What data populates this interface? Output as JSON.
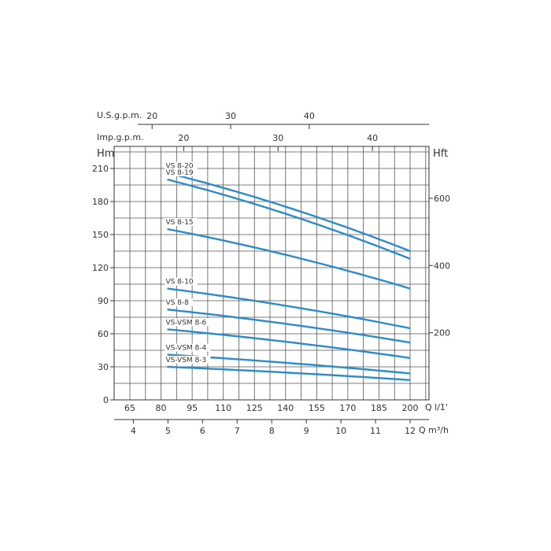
{
  "chart_data": {
    "type": "line",
    "x": [
      83,
      200
    ],
    "x_ticks": [
      65,
      80,
      95,
      110,
      125,
      140,
      155,
      170,
      185,
      200
    ],
    "x_unit": "Q l/1'",
    "x2_ticks": [
      4,
      5,
      6,
      7,
      8,
      9,
      10,
      11,
      12
    ],
    "x2_unit": "Q m³/h",
    "top_axis_1": {
      "label": "U.S.g.p.m.",
      "ticks": [
        20,
        30,
        40
      ]
    },
    "top_axis_2": {
      "label": "Imp.g.p.m.",
      "ticks": [
        20,
        30,
        40
      ]
    },
    "ylabel": "Hm",
    "ylim": [
      0,
      230
    ],
    "y_ticks": [
      0,
      30,
      60,
      90,
      120,
      150,
      180,
      210
    ],
    "y2label": "Hft",
    "y2_ticks": [
      200,
      400,
      600
    ],
    "grid": true,
    "series": [
      {
        "name": "VS 8-20",
        "values": [
          206,
          135
        ]
      },
      {
        "name": "VS 8-19",
        "values": [
          200,
          128
        ]
      },
      {
        "name": "VS 8-15",
        "values": [
          155,
          101
        ]
      },
      {
        "name": "VS 8-10",
        "values": [
          101,
          65
        ]
      },
      {
        "name": "VS 8-8",
        "values": [
          82,
          52
        ]
      },
      {
        "name": "VS-VSM 8-6",
        "values": [
          64,
          38
        ]
      },
      {
        "name": "VS-VSM 8-4",
        "values": [
          41,
          24
        ]
      },
      {
        "name": "VS-VSM 8-3",
        "values": [
          30,
          18
        ]
      }
    ],
    "line_color": "#2a8ccc",
    "grid_color": "#555555"
  }
}
